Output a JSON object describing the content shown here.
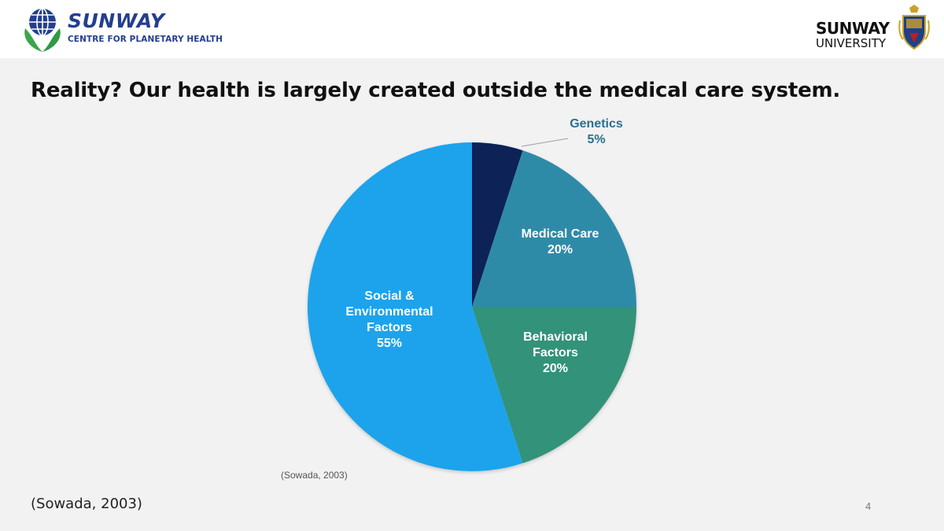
{
  "header": {
    "left_logo": {
      "brand": "SUNWAY",
      "subtitle": "CENTRE FOR PLANETARY HEALTH"
    },
    "right_logo": {
      "name": "SUNWAY",
      "subtitle": "UNIVERSITY"
    }
  },
  "slide": {
    "title": "Reality? Our health is largely created outside the medical care system.",
    "chart_source": "(Sowada, 2003)",
    "footer_source": "(Sowada, 2003)",
    "page_number": "4"
  },
  "chart_data": {
    "type": "pie",
    "title": "",
    "slices": [
      {
        "label": [
          "Genetics",
          "5%"
        ],
        "value": 5,
        "color": "#0b2456"
      },
      {
        "label": [
          "Medical Care",
          "20%"
        ],
        "value": 20,
        "color": "#2e8ba8"
      },
      {
        "label": [
          "Behavioral",
          "Factors",
          "20%"
        ],
        "value": 20,
        "color": "#32927a"
      },
      {
        "label": [
          "Social &",
          "Environmental",
          "Factors",
          "55%"
        ],
        "value": 55,
        "color": "#1aa3ec"
      }
    ],
    "legend": "none"
  }
}
